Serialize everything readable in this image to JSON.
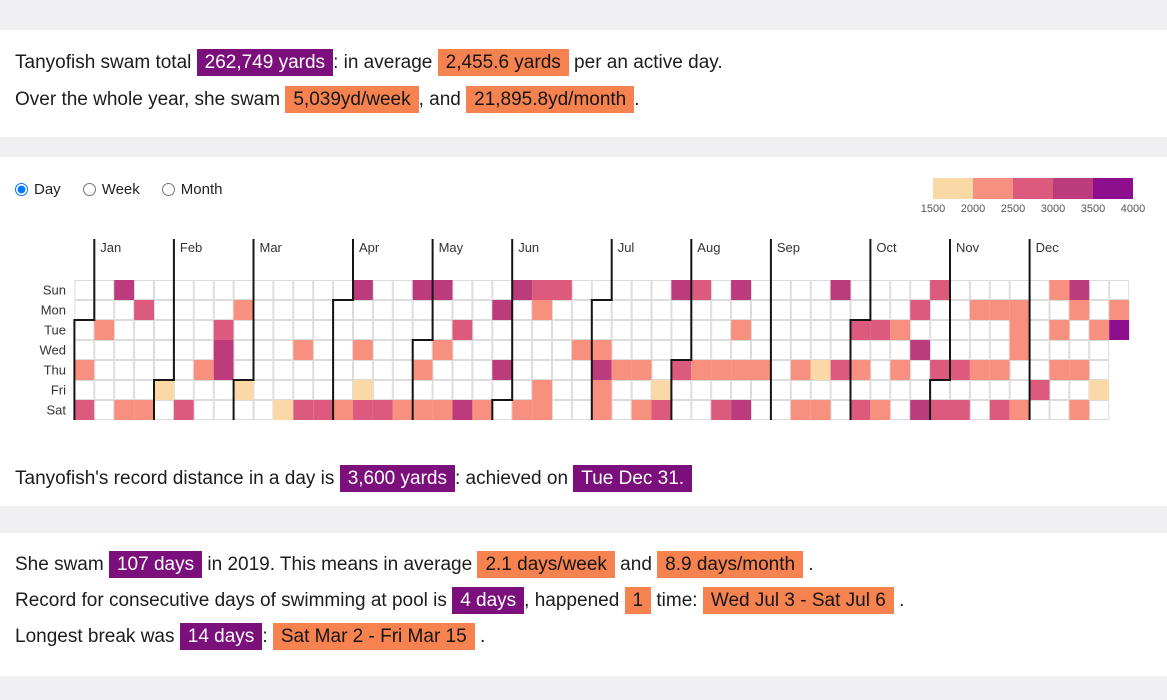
{
  "summary": {
    "line1": [
      {
        "t": "Tanyofish swam total ",
        "s": "plain"
      },
      {
        "t": "262,749 yards",
        "s": "purple"
      },
      {
        "t": ": in average ",
        "s": "plain"
      },
      {
        "t": "2,455.6 yards",
        "s": "orange"
      },
      {
        "t": " per an active day.",
        "s": "plain"
      }
    ],
    "line2": [
      {
        "t": "Over the whole year, she swam ",
        "s": "plain"
      },
      {
        "t": "5,039yd/week",
        "s": "orange"
      },
      {
        "t": ", and ",
        "s": "plain"
      },
      {
        "t": "21,895.8yd/month",
        "s": "orange"
      },
      {
        "t": ".",
        "s": "plain"
      }
    ]
  },
  "record_line": [
    {
      "t": "Tanyofish's record distance in a day is ",
      "s": "plain"
    },
    {
      "t": "3,600 yards",
      "s": "purple"
    },
    {
      "t": ": achieved on ",
      "s": "plain"
    },
    {
      "t": "Tue Dec 31.",
      "s": "purple"
    }
  ],
  "stats": {
    "line1": [
      {
        "t": "She swam ",
        "s": "plain"
      },
      {
        "t": "107 days",
        "s": "purple"
      },
      {
        "t": " in 2019. This means in average ",
        "s": "plain"
      },
      {
        "t": "2.1 days/week",
        "s": "orange"
      },
      {
        "t": " and ",
        "s": "plain"
      },
      {
        "t": "8.9 days/month",
        "s": "orange"
      },
      {
        "t": " .",
        "s": "plain"
      }
    ],
    "line2": [
      {
        "t": "Record for consecutive days of swimming at pool is ",
        "s": "plain"
      },
      {
        "t": "4 days",
        "s": "purple"
      },
      {
        "t": ", happened ",
        "s": "plain"
      },
      {
        "t": "1",
        "s": "orange"
      },
      {
        "t": " time: ",
        "s": "plain"
      },
      {
        "t": "Wed Jul 3 - Sat Jul 6",
        "s": "orange"
      },
      {
        "t": " .",
        "s": "plain"
      }
    ],
    "line3": [
      {
        "t": "Longest break was ",
        "s": "plain"
      },
      {
        "t": "14 days",
        "s": "purple"
      },
      {
        "t": ": ",
        "s": "plain"
      },
      {
        "t": "Sat Mar 2 - Fri Mar 15",
        "s": "orange"
      },
      {
        "t": " .",
        "s": "plain"
      }
    ]
  },
  "controls": {
    "options": [
      {
        "label": "Day",
        "selected": true
      },
      {
        "label": "Week",
        "selected": false
      },
      {
        "label": "Month",
        "selected": false
      }
    ]
  },
  "chart_data": {
    "type": "calendar-heatmap",
    "year": 2019,
    "unit": "yards",
    "active_days": 107,
    "day_labels": [
      "Sun",
      "Mon",
      "Tue",
      "Wed",
      "Thu",
      "Fri",
      "Sat"
    ],
    "weeks": 53,
    "months": [
      {
        "name": "Jan",
        "week": 0,
        "first_weekday": 2
      },
      {
        "name": "Feb",
        "week": 4,
        "first_weekday": 5
      },
      {
        "name": "Mar",
        "week": 8,
        "first_weekday": 5
      },
      {
        "name": "Apr",
        "week": 13,
        "first_weekday": 1
      },
      {
        "name": "May",
        "week": 17,
        "first_weekday": 3
      },
      {
        "name": "Jun",
        "week": 21,
        "first_weekday": 6
      },
      {
        "name": "Jul",
        "week": 26,
        "first_weekday": 1
      },
      {
        "name": "Aug",
        "week": 30,
        "first_weekday": 4
      },
      {
        "name": "Sep",
        "week": 35,
        "first_weekday": 0
      },
      {
        "name": "Oct",
        "week": 39,
        "first_weekday": 2
      },
      {
        "name": "Nov",
        "week": 43,
        "first_weekday": 5
      },
      {
        "name": "Dec",
        "week": 48,
        "first_weekday": 0
      }
    ],
    "palette": [
      "#fbd9a6",
      "#f7907e",
      "#db5a7d",
      "#bb3b7d",
      "#8e0f8e"
    ],
    "legend_ticks": [
      "1500",
      "2000",
      "2500",
      "3000",
      "3500",
      "4000"
    ],
    "highlight_colors": {
      "purple": "#7b0f7b",
      "orange": "#f5824f"
    },
    "cells": [
      [
        0,
        4,
        2
      ],
      [
        0,
        6,
        3
      ],
      [
        1,
        2,
        2
      ],
      [
        2,
        0,
        4
      ],
      [
        2,
        6,
        2
      ],
      [
        3,
        1,
        3
      ],
      [
        3,
        6,
        2
      ],
      [
        4,
        5,
        1
      ],
      [
        5,
        6,
        3
      ],
      [
        6,
        4,
        2
      ],
      [
        7,
        2,
        3
      ],
      [
        7,
        3,
        4
      ],
      [
        7,
        4,
        4
      ],
      [
        8,
        1,
        2
      ],
      [
        8,
        5,
        1
      ],
      [
        10,
        6,
        1
      ],
      [
        11,
        3,
        2
      ],
      [
        11,
        6,
        3
      ],
      [
        12,
        6,
        3
      ],
      [
        13,
        6,
        2
      ],
      [
        14,
        0,
        4
      ],
      [
        14,
        3,
        2
      ],
      [
        14,
        5,
        1
      ],
      [
        14,
        6,
        3
      ],
      [
        15,
        6,
        3
      ],
      [
        16,
        6,
        2
      ],
      [
        17,
        0,
        4
      ],
      [
        17,
        4,
        2
      ],
      [
        17,
        6,
        2
      ],
      [
        18,
        0,
        4
      ],
      [
        18,
        3,
        2
      ],
      [
        18,
        6,
        2
      ],
      [
        19,
        2,
        3
      ],
      [
        19,
        6,
        4
      ],
      [
        20,
        6,
        2
      ],
      [
        21,
        1,
        4
      ],
      [
        21,
        4,
        4
      ],
      [
        22,
        0,
        4
      ],
      [
        22,
        6,
        2
      ],
      [
        23,
        0,
        3
      ],
      [
        23,
        1,
        2
      ],
      [
        23,
        5,
        2
      ],
      [
        23,
        6,
        2
      ],
      [
        24,
        0,
        3
      ],
      [
        25,
        3,
        2
      ],
      [
        26,
        3,
        2
      ],
      [
        26,
        4,
        4
      ],
      [
        26,
        5,
        2
      ],
      [
        26,
        6,
        2
      ],
      [
        27,
        4,
        2
      ],
      [
        28,
        4,
        2
      ],
      [
        28,
        6,
        2
      ],
      [
        29,
        5,
        1
      ],
      [
        29,
        6,
        3
      ],
      [
        30,
        0,
        4
      ],
      [
        30,
        4,
        3
      ],
      [
        31,
        0,
        3
      ],
      [
        31,
        4,
        2
      ],
      [
        32,
        4,
        2
      ],
      [
        32,
        6,
        3
      ],
      [
        33,
        0,
        4
      ],
      [
        33,
        2,
        2
      ],
      [
        33,
        4,
        2
      ],
      [
        33,
        6,
        4
      ],
      [
        34,
        4,
        2
      ],
      [
        36,
        4,
        2
      ],
      [
        36,
        6,
        2
      ],
      [
        37,
        4,
        1
      ],
      [
        37,
        6,
        2
      ],
      [
        38,
        0,
        4
      ],
      [
        38,
        4,
        3
      ],
      [
        39,
        2,
        3
      ],
      [
        39,
        4,
        2
      ],
      [
        39,
        6,
        3
      ],
      [
        40,
        2,
        3
      ],
      [
        40,
        6,
        2
      ],
      [
        41,
        2,
        2
      ],
      [
        41,
        4,
        2
      ],
      [
        42,
        1,
        3
      ],
      [
        42,
        3,
        4
      ],
      [
        42,
        6,
        4
      ],
      [
        43,
        0,
        3
      ],
      [
        43,
        4,
        3
      ],
      [
        43,
        6,
        3
      ],
      [
        44,
        4,
        3
      ],
      [
        44,
        6,
        3
      ],
      [
        45,
        1,
        2
      ],
      [
        45,
        4,
        2
      ],
      [
        46,
        1,
        2
      ],
      [
        46,
        4,
        2
      ],
      [
        46,
        6,
        3
      ],
      [
        47,
        1,
        2
      ],
      [
        47,
        2,
        2
      ],
      [
        47,
        3,
        2
      ],
      [
        47,
        6,
        2
      ],
      [
        48,
        5,
        3
      ],
      [
        49,
        0,
        2
      ],
      [
        49,
        2,
        2
      ],
      [
        49,
        4,
        2
      ],
      [
        50,
        0,
        4
      ],
      [
        50,
        1,
        2
      ],
      [
        50,
        4,
        2
      ],
      [
        50,
        6,
        2
      ],
      [
        51,
        2,
        2
      ],
      [
        51,
        5,
        1
      ],
      [
        52,
        1,
        2
      ],
      [
        52,
        2,
        5
      ]
    ]
  }
}
